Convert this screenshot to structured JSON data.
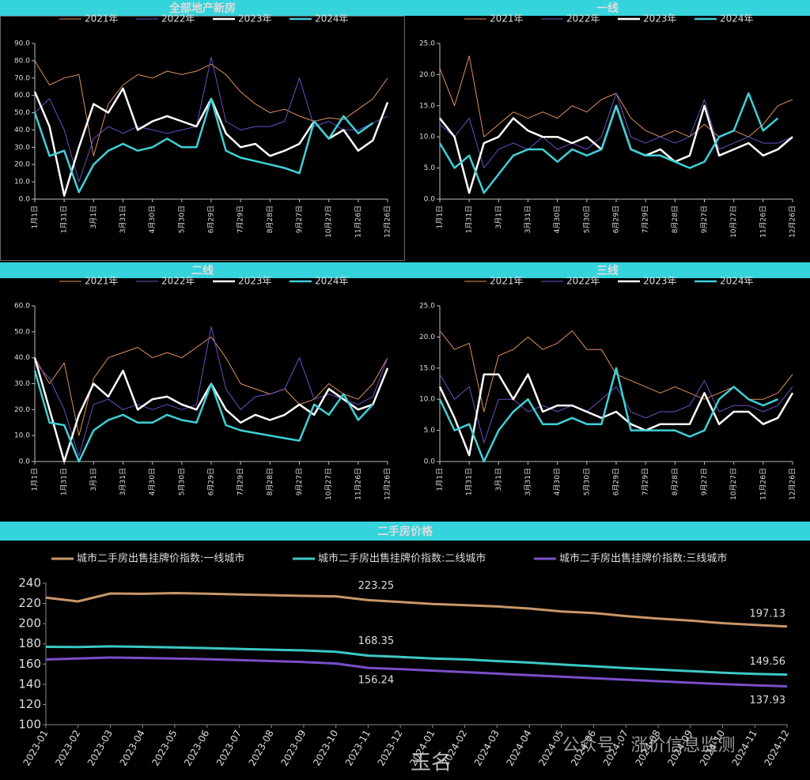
{
  "chart_data": [
    {
      "type": "line",
      "title": "全部地产新房",
      "categories": [
        "1月1日",
        null,
        "1月31日",
        null,
        "3月1日",
        null,
        "3月31日",
        null,
        "4月30日",
        null,
        "5月30日",
        null,
        "6月29日",
        null,
        "7月29日",
        null,
        "8月28日",
        null,
        "9月27日",
        null,
        "10月27日",
        null,
        "11月26日",
        null,
        "12月26日"
      ],
      "ylim": [
        0,
        90
      ],
      "yticks": [
        {
          "value": 0,
          "label": "0.0"
        },
        {
          "value": 10,
          "label": "10.0"
        },
        {
          "value": 20,
          "label": "20.0"
        },
        {
          "value": 30,
          "label": "30.0"
        },
        {
          "value": 40,
          "label": "40.0"
        },
        {
          "value": 50,
          "label": "50.0"
        },
        {
          "value": 60,
          "label": "60.0"
        },
        {
          "value": 70,
          "label": "70.0"
        },
        {
          "value": 80,
          "label": "80.0"
        },
        {
          "value": 90,
          "label": "90.0"
        }
      ],
      "series": [
        {
          "name": "2021年",
          "color": "#e0915a",
          "linewidth": 1,
          "values": [
            80,
            66,
            70,
            72,
            25,
            55,
            66,
            72,
            70,
            74,
            72,
            74,
            78,
            72,
            62,
            55,
            50,
            52,
            48,
            45,
            47,
            46,
            52,
            58,
            70
          ]
        },
        {
          "name": "2022年",
          "color": "#6a4fc4",
          "linewidth": 1,
          "values": [
            50,
            58,
            40,
            10,
            35,
            42,
            38,
            42,
            40,
            38,
            40,
            42,
            82,
            45,
            40,
            42,
            42,
            45,
            70,
            42,
            45,
            40,
            40,
            44,
            48
          ]
        },
        {
          "name": "2023年",
          "color": "#ffffff",
          "linewidth": 2.5,
          "values": [
            62,
            42,
            2,
            30,
            55,
            50,
            64,
            40,
            45,
            48,
            45,
            42,
            58,
            38,
            30,
            32,
            25,
            28,
            32,
            45,
            35,
            40,
            28,
            34,
            56
          ]
        },
        {
          "name": "2024年",
          "color": "#3fd0d8",
          "linewidth": 2.5,
          "values": [
            50,
            25,
            28,
            4,
            20,
            28,
            32,
            28,
            30,
            35,
            30,
            30,
            58,
            28,
            24,
            22,
            20,
            18,
            15,
            45,
            35,
            48,
            38,
            44,
            null
          ]
        }
      ]
    },
    {
      "type": "line",
      "title": "一线",
      "categories": [
        "1月1日",
        null,
        "1月31日",
        null,
        "3月1日",
        null,
        "3月31日",
        null,
        "4月30日",
        null,
        "5月30日",
        null,
        "6月29日",
        null,
        "7月29日",
        null,
        "8月28日",
        null,
        "9月27日",
        null,
        "10月27日",
        null,
        "11月26日",
        null,
        "12月26日"
      ],
      "ylim": [
        0,
        25
      ],
      "yticks": [
        {
          "value": 0,
          "label": "0.0"
        },
        {
          "value": 5,
          "label": "5.0"
        },
        {
          "value": 10,
          "label": "10.0"
        },
        {
          "value": 15,
          "label": "15.0"
        },
        {
          "value": 20,
          "label": "20.0"
        },
        {
          "value": 25,
          "label": "25.0"
        }
      ],
      "series": [
        {
          "name": "2021年",
          "color": "#e0915a",
          "linewidth": 1,
          "values": [
            21,
            15,
            23,
            10,
            12,
            14,
            13,
            14,
            13,
            15,
            14,
            16,
            17,
            13,
            11,
            10,
            11,
            10,
            12,
            10,
            11,
            10,
            12,
            15,
            16
          ]
        },
        {
          "name": "2022年",
          "color": "#6a4fc4",
          "linewidth": 1,
          "values": [
            12,
            10,
            13,
            5,
            8,
            9,
            8,
            10,
            8,
            9,
            8,
            10,
            17,
            10,
            9,
            10,
            9,
            10,
            16,
            8,
            9,
            10,
            9,
            9,
            10
          ]
        },
        {
          "name": "2023年",
          "color": "#ffffff",
          "linewidth": 2.5,
          "values": [
            13,
            10,
            1,
            9,
            10,
            13,
            11,
            10,
            10,
            9,
            10,
            8,
            15,
            8,
            7,
            8,
            6,
            7,
            15,
            7,
            8,
            9,
            7,
            8,
            10
          ]
        },
        {
          "name": "2024年",
          "color": "#3fd0d8",
          "linewidth": 2.5,
          "values": [
            9,
            5,
            7,
            1,
            4,
            7,
            8,
            8,
            6,
            8,
            7,
            8,
            15,
            8,
            7,
            7,
            6,
            5,
            6,
            10,
            11,
            17,
            11,
            13,
            null
          ]
        }
      ]
    },
    {
      "type": "line",
      "title": "二线",
      "categories": [
        "1月1日",
        null,
        "1月31日",
        null,
        "3月1日",
        null,
        "3月31日",
        null,
        "4月30日",
        null,
        "5月30日",
        null,
        "6月29日",
        null,
        "7月29日",
        null,
        "8月28日",
        null,
        "9月27日",
        null,
        "10月27日",
        null,
        "11月26日",
        null,
        "12月26日"
      ],
      "ylim": [
        0,
        60
      ],
      "yticks": [
        {
          "value": 0,
          "label": "0.0"
        },
        {
          "value": 10,
          "label": "10.0"
        },
        {
          "value": 20,
          "label": "20.0"
        },
        {
          "value": 30,
          "label": "30.0"
        },
        {
          "value": 40,
          "label": "40.0"
        },
        {
          "value": 50,
          "label": "50.0"
        },
        {
          "value": 60,
          "label": "60.0"
        }
      ],
      "series": [
        {
          "name": "2021年",
          "color": "#e0915a",
          "linewidth": 1,
          "values": [
            40,
            30,
            38,
            10,
            32,
            40,
            42,
            44,
            40,
            42,
            40,
            44,
            48,
            40,
            30,
            28,
            26,
            28,
            22,
            24,
            30,
            26,
            24,
            30,
            40
          ]
        },
        {
          "name": "2022年",
          "color": "#6a4fc4",
          "linewidth": 1,
          "values": [
            38,
            32,
            20,
            2,
            22,
            24,
            20,
            22,
            20,
            22,
            20,
            22,
            52,
            28,
            20,
            25,
            26,
            28,
            40,
            24,
            26,
            24,
            22,
            25,
            40
          ]
        },
        {
          "name": "2023年",
          "color": "#ffffff",
          "linewidth": 2.5,
          "values": [
            40,
            20,
            0,
            18,
            30,
            25,
            35,
            20,
            24,
            25,
            22,
            20,
            30,
            20,
            15,
            18,
            16,
            18,
            22,
            18,
            28,
            24,
            20,
            22,
            36
          ]
        },
        {
          "name": "2024年",
          "color": "#3fd0d8",
          "linewidth": 2.5,
          "values": [
            35,
            15,
            14,
            0,
            12,
            16,
            18,
            15,
            15,
            18,
            16,
            15,
            30,
            14,
            12,
            11,
            10,
            9,
            8,
            22,
            18,
            26,
            16,
            22,
            null
          ]
        }
      ]
    },
    {
      "type": "line",
      "title": "三线",
      "categories": [
        "1月1日",
        null,
        "1月31日",
        null,
        "3月1日",
        null,
        "3月31日",
        null,
        "4月30日",
        null,
        "5月30日",
        null,
        "6月29日",
        null,
        "7月29日",
        null,
        "8月28日",
        null,
        "9月27日",
        null,
        "10月27日",
        null,
        "11月26日",
        null,
        "12月26日"
      ],
      "ylim": [
        0,
        25
      ],
      "yticks": [
        {
          "value": 0,
          "label": "0.0"
        },
        {
          "value": 5,
          "label": "5.0"
        },
        {
          "value": 10,
          "label": "10.0"
        },
        {
          "value": 15,
          "label": "15.0"
        },
        {
          "value": 20,
          "label": "20.0"
        },
        {
          "value": 25,
          "label": "25.0"
        }
      ],
      "series": [
        {
          "name": "2021年",
          "color": "#e0915a",
          "linewidth": 1,
          "values": [
            21,
            18,
            19,
            8,
            17,
            18,
            20,
            18,
            19,
            21,
            18,
            18,
            14,
            13,
            12,
            11,
            12,
            11,
            10,
            11,
            12,
            10,
            10,
            11,
            14
          ]
        },
        {
          "name": "2022年",
          "color": "#6a4fc4",
          "linewidth": 1,
          "values": [
            14,
            10,
            12,
            3,
            10,
            10,
            8,
            9,
            8,
            9,
            8,
            10,
            12,
            8,
            7,
            8,
            8,
            9,
            13,
            8,
            9,
            9,
            8,
            9,
            12
          ]
        },
        {
          "name": "2023年",
          "color": "#ffffff",
          "linewidth": 2.5,
          "values": [
            12,
            7,
            1,
            14,
            14,
            10,
            14,
            8,
            9,
            9,
            8,
            7,
            8,
            6,
            5,
            6,
            6,
            6,
            11,
            6,
            8,
            8,
            6,
            7,
            11
          ]
        },
        {
          "name": "2024年",
          "color": "#3fd0d8",
          "linewidth": 2.5,
          "values": [
            10,
            5,
            6,
            0,
            5,
            8,
            10,
            6,
            6,
            7,
            6,
            6,
            15,
            5,
            5,
            5,
            5,
            4,
            5,
            10,
            12,
            10,
            9,
            10,
            null
          ]
        }
      ]
    },
    {
      "type": "line",
      "title": "二手房价格",
      "categories": [
        "2023-01",
        "2023-02",
        "2023-03",
        "2023-04",
        "2023-05",
        "2023-06",
        "2023-07",
        "2023-08",
        "2023-09",
        "2023-10",
        "2023-11",
        "2023-12",
        "2024-01",
        "2024-02",
        "2024-03",
        "2024-04",
        "2024-05",
        "2024-06",
        "2024-07",
        "2024-08",
        "2024-09",
        "2024-10",
        "2024-11",
        "2024-12"
      ],
      "ylim": [
        100,
        240
      ],
      "yticks": [
        100,
        120,
        140,
        160,
        180,
        200,
        220,
        240
      ],
      "series": [
        {
          "name": "城市二手房出售挂牌价指数:一线城市",
          "color": "#c8976a",
          "linewidth": 3,
          "values": [
            225.8,
            222,
            229.8,
            229.5,
            230.2,
            229.6,
            228.8,
            228.2,
            227.5,
            227,
            223.25,
            221.5,
            219.5,
            218.3,
            217,
            215,
            212,
            210.5,
            207.5,
            205,
            203,
            200.5,
            198.8,
            197.13
          ],
          "value_labels": [
            null,
            null,
            null,
            null,
            null,
            null,
            null,
            null,
            null,
            null,
            "223.25",
            null,
            null,
            null,
            null,
            null,
            null,
            null,
            null,
            null,
            null,
            null,
            null,
            "197.13"
          ]
        },
        {
          "name": "城市二手房出售挂牌价指数:二线城市",
          "color": "#3cc8c4",
          "linewidth": 3,
          "values": [
            177,
            176.8,
            177.5,
            177,
            176.5,
            175.8,
            175,
            174.2,
            173.5,
            172.2,
            168.35,
            167,
            165.5,
            164.6,
            163,
            161.5,
            159.5,
            157.8,
            156,
            154.5,
            153,
            151.5,
            150.3,
            149.56
          ],
          "value_labels": [
            null,
            null,
            null,
            null,
            null,
            null,
            null,
            null,
            null,
            null,
            "168.35",
            null,
            null,
            null,
            null,
            null,
            null,
            null,
            null,
            null,
            null,
            null,
            null,
            "149.56"
          ]
        },
        {
          "name": "城市二手房出售挂牌价指数:三线城市",
          "color": "#7a4fc8",
          "linewidth": 3,
          "values": [
            164.5,
            165.5,
            166.5,
            166,
            165.5,
            164.8,
            164,
            163,
            162,
            160.5,
            156.24,
            155,
            153.5,
            152,
            150.5,
            149,
            147.5,
            146,
            144.5,
            143,
            141.5,
            140.2,
            139,
            137.93
          ],
          "value_labels": [
            null,
            null,
            null,
            null,
            null,
            null,
            null,
            null,
            null,
            null,
            "156.24",
            null,
            null,
            null,
            null,
            null,
            null,
            null,
            null,
            null,
            null,
            null,
            null,
            "137.93"
          ]
        }
      ]
    }
  ],
  "watermark": [
    "玉名",
    "公众号 · 涨价信息监测"
  ]
}
